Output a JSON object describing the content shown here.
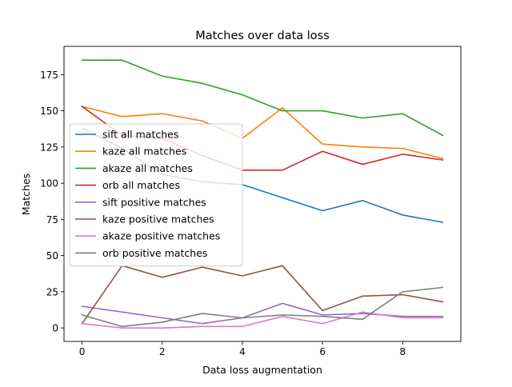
{
  "chart_data": {
    "type": "line",
    "title": "Matches over data loss",
    "xlabel": "Data loss augmentation",
    "ylabel": "Matches",
    "x": [
      0,
      1,
      2,
      3,
      4,
      5,
      6,
      7,
      8,
      9
    ],
    "xlim": [
      -0.45,
      9.45
    ],
    "ylim": [
      -9.3,
      194.5
    ],
    "xticks": [
      0,
      2,
      4,
      6,
      8
    ],
    "yticks": [
      0,
      25,
      50,
      75,
      100,
      125,
      150,
      175
    ],
    "grid": false,
    "legend_position": "center-left",
    "series": [
      {
        "name": "sift all matches",
        "color": "#1f77b4",
        "values": [
          138,
          124,
          106,
          101,
          99,
          90,
          81,
          88,
          78,
          73
        ]
      },
      {
        "name": "kaze all matches",
        "color": "#ff7f0e",
        "values": [
          153,
          146,
          148,
          143,
          131,
          152,
          127,
          125,
          124,
          117
        ]
      },
      {
        "name": "akaze all matches",
        "color": "#2ca02c",
        "values": [
          185,
          185,
          174,
          169,
          161,
          150,
          150,
          145,
          148,
          133
        ]
      },
      {
        "name": "orb all matches",
        "color": "#d62728",
        "values": [
          153,
          133,
          131,
          119,
          109,
          109,
          122,
          113,
          120,
          116
        ]
      },
      {
        "name": "sift positive matches",
        "color": "#9467bd",
        "values": [
          15,
          11,
          7,
          3,
          7,
          17,
          9,
          10,
          8,
          8
        ]
      },
      {
        "name": "kaze positive matches",
        "color": "#8c564b",
        "values": [
          3,
          43,
          35,
          42,
          36,
          43,
          12,
          22,
          23,
          18
        ]
      },
      {
        "name": "akaze positive matches",
        "color": "#e377c2",
        "values": [
          3,
          0,
          0,
          1,
          1,
          8,
          3,
          11,
          7,
          7
        ]
      },
      {
        "name": "orb positive matches",
        "color": "#7f7f7f",
        "values": [
          9,
          1,
          4,
          10,
          7,
          9,
          8,
          6,
          25,
          28
        ]
      }
    ]
  }
}
